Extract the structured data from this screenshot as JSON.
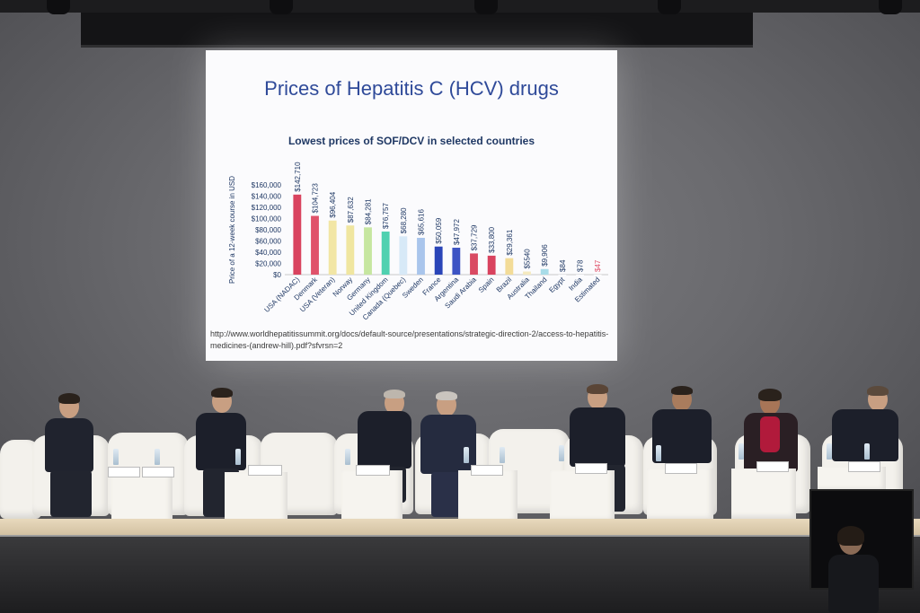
{
  "slide": {
    "title": "Prices of Hepatitis C (HCV) drugs",
    "chart_title": "Lowest prices of SOF/DCV in selected countries",
    "source": "http://www.worldhepatitissummit.org/docs/default-source/presentations/strategic-direction-2/access-to-hepatitis-medicines-(andrew-hill).pdf?sfvrsn=2"
  },
  "chart_data": {
    "type": "bar",
    "title": "Lowest prices of SOF/DCV in selected countries",
    "ylabel": "Price of a 12-week course in USD",
    "xlabel": "",
    "ylim": [
      0,
      160000
    ],
    "yticks": [
      "$0",
      "$20,000",
      "$40,000",
      "$60,000",
      "$80,000",
      "$100,000",
      "$120,000",
      "$140,000",
      "$160,000"
    ],
    "categories": [
      "USA (NADAC)",
      "Denmark",
      "USA (Veteran)",
      "Norway",
      "Germany",
      "United Kingdom",
      "Canada (Quebec)",
      "Sweden",
      "France",
      "Argentina",
      "Saudi Arabia",
      "Spain",
      "Brazil",
      "Australia",
      "Thailand",
      "Egypt",
      "India",
      "Estimated"
    ],
    "values": [
      142710,
      104723,
      96404,
      87632,
      84281,
      76757,
      68280,
      65616,
      50059,
      47972,
      37729,
      33800,
      29361,
      5540,
      9906,
      84,
      78,
      47
    ],
    "labels": [
      "$142,710",
      "$104,723",
      "$96,404",
      "$87,632",
      "$84,281",
      "$76,757",
      "$68,280",
      "$65,616",
      "$50,059",
      "$47,972",
      "$37,729",
      "$33,800",
      "$29,361",
      "$5540",
      "$9,906",
      "$84",
      "$78",
      "$47"
    ],
    "colors": [
      "#d9435f",
      "#e0526a",
      "#f2e6a5",
      "#f0e6a0",
      "#c6e6a0",
      "#4fd1b0",
      "#d7e9f7",
      "#a9c5ec",
      "#2a45b8",
      "#3d54c4",
      "#d94a63",
      "#d9435f",
      "#f3dc98",
      "#f5eac0",
      "#a8dce8",
      "#ffffff",
      "#ffffff",
      "#ffffff"
    ],
    "label_colors": [
      "#1f3864",
      "#1f3864",
      "#1f3864",
      "#1f3864",
      "#1f3864",
      "#1f3864",
      "#1f3864",
      "#1f3864",
      "#1f3864",
      "#1f3864",
      "#1f3864",
      "#1f3864",
      "#1f3864",
      "#1f3864",
      "#1f3864",
      "#1f3864",
      "#1f3864",
      "#e0526a"
    ],
    "grid": false
  }
}
